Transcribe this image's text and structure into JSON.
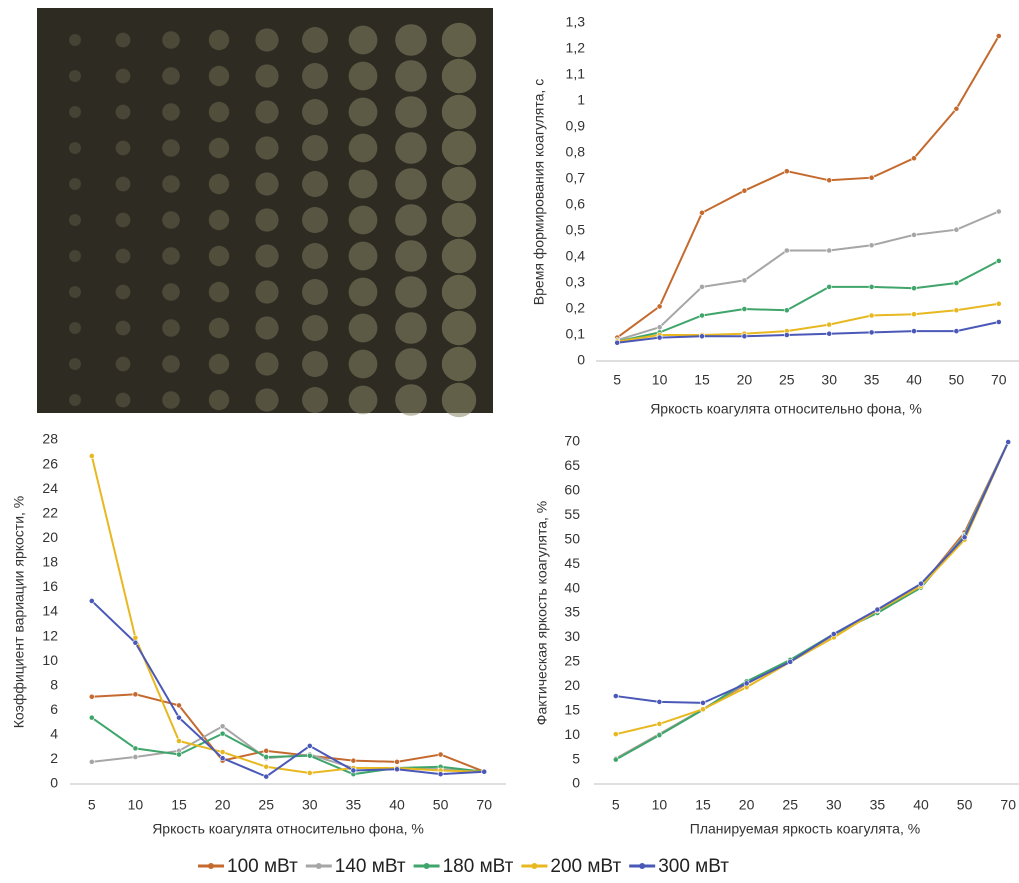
{
  "legend": {
    "items": [
      {
        "name": "100 мВт",
        "color": "#c46a2e"
      },
      {
        "name": "140 мВт",
        "color": "#a6a6a6"
      },
      {
        "name": "180 мВт",
        "color": "#3fa56a"
      },
      {
        "name": "200 мВт",
        "color": "#e8b820"
      },
      {
        "name": "300 мВт",
        "color": "#4a58b8"
      }
    ]
  },
  "chart_data": [
    {
      "type": "line",
      "x_label": "Яркость коагулята относительно фона, %",
      "y_label": "Время формирования коагулята, с",
      "categories": [
        5,
        10,
        15,
        20,
        25,
        30,
        35,
        40,
        50,
        70
      ],
      "ylim": [
        0,
        1.3
      ],
      "yticks": [
        0,
        {
          "value": 0.1,
          "label": "0,1"
        },
        {
          "value": 0.2,
          "label": "0,2"
        },
        {
          "value": 0.3,
          "label": "0,3"
        },
        {
          "value": 0.4,
          "label": "0,4"
        },
        {
          "value": 0.5,
          "label": "0,5"
        },
        {
          "value": 0.6,
          "label": "0,6"
        },
        {
          "value": 0.7,
          "label": "0,7"
        },
        {
          "value": 0.8,
          "label": "0,8"
        },
        {
          "value": 0.9,
          "label": "0,9"
        },
        1,
        {
          "value": 1.1,
          "label": "1,1"
        },
        {
          "value": 1.2,
          "label": "1,2"
        },
        {
          "value": 1.3,
          "label": "1,3"
        }
      ],
      "series": [
        {
          "values": [
            0.09,
            0.21,
            0.57,
            0.655,
            0.73,
            0.695,
            0.705,
            0.78,
            0.97,
            1.25
          ]
        },
        {
          "values": [
            0.08,
            0.13,
            0.285,
            0.31,
            0.425,
            0.425,
            0.445,
            0.485,
            0.505,
            0.575
          ]
        },
        {
          "values": [
            0.075,
            0.11,
            0.175,
            0.2,
            0.195,
            0.285,
            0.285,
            0.28,
            0.3,
            0.385
          ]
        },
        {
          "values": [
            0.075,
            0.1,
            0.1,
            0.105,
            0.115,
            0.14,
            0.175,
            0.18,
            0.195,
            0.22
          ]
        },
        {
          "values": [
            0.07,
            0.09,
            0.095,
            0.095,
            0.1,
            0.105,
            0.11,
            0.115,
            0.115,
            0.15
          ]
        }
      ]
    },
    {
      "type": "line",
      "x_label": "Яркость коагулята относительно фона, %",
      "y_label": "Коэффициент вариации яркости, %",
      "categories": [
        5,
        10,
        15,
        20,
        25,
        30,
        35,
        40,
        50,
        70
      ],
      "ylim": [
        0,
        28
      ],
      "yticks": [
        0,
        2,
        4,
        6,
        8,
        10,
        12,
        14,
        16,
        18,
        20,
        22,
        24,
        26,
        28
      ],
      "series": [
        {
          "values": [
            7.1,
            7.3,
            6.4,
            1.9,
            2.7,
            2.3,
            1.9,
            1.8,
            2.4,
            1
          ]
        },
        {
          "values": [
            1.8,
            2.2,
            2.7,
            4.7,
            2.1,
            2.4,
            1.3,
            1.3,
            1.2,
            1
          ]
        },
        {
          "values": [
            5.4,
            2.9,
            2.4,
            4.1,
            2.2,
            2.3,
            0.8,
            1.3,
            1.4,
            1
          ]
        },
        {
          "values": [
            26.7,
            11.9,
            3.5,
            2.6,
            1.4,
            0.9,
            1.3,
            1.3,
            1.1,
            1
          ]
        },
        {
          "values": [
            14.9,
            11.5,
            5.4,
            2.1,
            0.6,
            3.1,
            1.1,
            1.2,
            0.8,
            1
          ]
        }
      ]
    },
    {
      "type": "line",
      "x_label": "Планируемая яркость коагулята, %",
      "y_label": "Фактическая яркость коагулята, %",
      "categories": [
        5,
        10,
        15,
        20,
        25,
        30,
        35,
        40,
        50,
        70
      ],
      "ylim": [
        0,
        70
      ],
      "yticks": [
        0,
        5,
        10,
        15,
        20,
        25,
        30,
        35,
        40,
        45,
        50,
        55,
        60,
        65,
        70
      ],
      "series": [
        {
          "values": [
            5.2,
            10.2,
            15.3,
            20.5,
            25.3,
            30.5,
            35.2,
            40.5,
            51.5,
            70
          ]
        },
        {
          "values": [
            5.2,
            10.2,
            15.3,
            20.7,
            25.2,
            30.5,
            35.3,
            40.5,
            51,
            70
          ]
        },
        {
          "values": [
            5,
            10,
            15.2,
            21,
            25.4,
            30.7,
            35,
            40.2,
            50.8,
            70
          ]
        },
        {
          "values": [
            10.2,
            12.3,
            15.3,
            19.8,
            25,
            30,
            35.5,
            40.5,
            50,
            70
          ]
        },
        {
          "values": [
            18,
            16.8,
            16.6,
            20.6,
            25,
            30.7,
            35.7,
            41,
            50.5,
            70
          ]
        }
      ]
    }
  ]
}
